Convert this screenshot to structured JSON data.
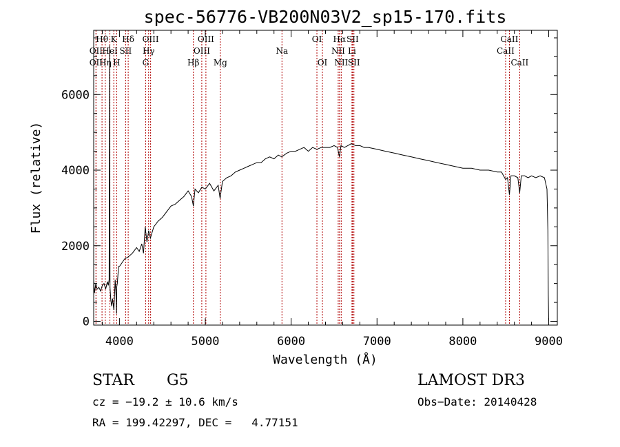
{
  "chart_data": {
    "type": "line",
    "title": "spec-56776-VB200N03V2_sp15-170.fits",
    "xlabel": "Wavelength (Å)",
    "ylabel": "Flux (relative)",
    "xlim": [
      3700,
      9100
    ],
    "ylim": [
      -100,
      7700
    ],
    "x_ticks": [
      4000,
      5000,
      6000,
      7000,
      8000,
      9000
    ],
    "y_ticks": [
      0,
      2000,
      4000,
      6000
    ],
    "x_minor_step": 200,
    "y_minor_step": 500,
    "grid": false,
    "series": [
      {
        "x": [
          3700,
          3710,
          3725,
          3740,
          3760,
          3780,
          3800,
          3820,
          3840,
          3860,
          3870,
          3880,
          3885,
          3890,
          3900,
          3910,
          3920,
          3935,
          3950,
          3960,
          3966,
          3968,
          3975,
          3990,
          4000,
          4030,
          4060,
          4100,
          4150,
          4200,
          4230,
          4260,
          4280,
          4300,
          4320,
          4340,
          4360,
          4400,
          4450,
          4500,
          4550,
          4600,
          4650,
          4700,
          4750,
          4800,
          4840,
          4861,
          4880,
          4920,
          4960,
          5000,
          5050,
          5100,
          5150,
          5172,
          5200,
          5250,
          5300,
          5350,
          5400,
          5450,
          5500,
          5550,
          5600,
          5650,
          5700,
          5750,
          5800,
          5850,
          5890,
          5950,
          6000,
          6050,
          6100,
          6150,
          6200,
          6250,
          6300,
          6350,
          6400,
          6450,
          6500,
          6540,
          6563,
          6580,
          6620,
          6660,
          6700,
          6750,
          6800,
          6850,
          6900,
          7000,
          7100,
          7200,
          7300,
          7400,
          7500,
          7600,
          7700,
          7800,
          7900,
          8000,
          8100,
          8200,
          8300,
          8400,
          8450,
          8498,
          8520,
          8542,
          8560,
          8600,
          8640,
          8662,
          8680,
          8720,
          8760,
          8800,
          8850,
          8900,
          8950,
          8980,
          8990,
          8995,
          9000
        ],
        "values": [
          1100,
          750,
          1000,
          850,
          900,
          800,
          950,
          1000,
          850,
          1050,
          950,
          1100,
          7300,
          900,
          550,
          400,
          600,
          300,
          1100,
          700,
          200,
          900,
          1000,
          1450,
          1450,
          1550,
          1650,
          1700,
          1800,
          1950,
          1850,
          2050,
          1800,
          2500,
          2100,
          2400,
          2200,
          2500,
          2650,
          2750,
          2900,
          3050,
          3100,
          3200,
          3300,
          3450,
          3300,
          3050,
          3500,
          3400,
          3550,
          3500,
          3650,
          3450,
          3600,
          3250,
          3700,
          3800,
          3850,
          3950,
          4000,
          4050,
          4100,
          4150,
          4200,
          4200,
          4300,
          4350,
          4300,
          4400,
          4350,
          4450,
          4500,
          4500,
          4550,
          4600,
          4500,
          4600,
          4550,
          4600,
          4600,
          4600,
          4650,
          4600,
          4350,
          4650,
          4600,
          4650,
          4700,
          4650,
          4650,
          4600,
          4600,
          4550,
          4500,
          4450,
          4400,
          4350,
          4300,
          4250,
          4200,
          4150,
          4100,
          4050,
          4050,
          4000,
          4000,
          3950,
          3950,
          3750,
          3800,
          3350,
          3850,
          3850,
          3800,
          3400,
          3850,
          3850,
          3800,
          3850,
          3800,
          3850,
          3800,
          3500,
          2400,
          700,
          0
        ]
      }
    ],
    "line_markers": [
      {
        "label": "Hθ",
        "x": 3797,
        "row": 0
      },
      {
        "label": "OII",
        "x": 3727,
        "row": 1
      },
      {
        "label": "OII",
        "x": 3727,
        "row": 2
      },
      {
        "label": "Hη",
        "x": 3835,
        "row": 2
      },
      {
        "label": "HeI",
        "x": 3889,
        "row": 1
      },
      {
        "label": "K",
        "x": 3934,
        "row": 0
      },
      {
        "label": "H",
        "x": 3968,
        "row": 2
      },
      {
        "label": "Hδ",
        "x": 4102,
        "row": 0
      },
      {
        "label": "SII",
        "x": 4072,
        "row": 1
      },
      {
        "label": "OIII",
        "x": 4363,
        "row": 0
      },
      {
        "label": "Hγ",
        "x": 4340,
        "row": 1
      },
      {
        "label": "G",
        "x": 4305,
        "row": 2
      },
      {
        "label": "Hβ",
        "x": 4861,
        "row": 2
      },
      {
        "label": "OIII",
        "x": 5007,
        "row": 0
      },
      {
        "label": "OIII",
        "x": 4959,
        "row": 1
      },
      {
        "label": "Mg",
        "x": 5175,
        "row": 2
      },
      {
        "label": "Na",
        "x": 5893,
        "row": 1
      },
      {
        "label": "OI",
        "x": 6300,
        "row": 0
      },
      {
        "label": "OI",
        "x": 6364,
        "row": 2
      },
      {
        "label": "Hα",
        "x": 6563,
        "row": 0
      },
      {
        "label": "SII",
        "x": 6716,
        "row": 0
      },
      {
        "label": "NII",
        "x": 6548,
        "row": 1
      },
      {
        "label": "Li",
        "x": 6708,
        "row": 1
      },
      {
        "label": "NII",
        "x": 6583,
        "row": 2
      },
      {
        "label": "SII",
        "x": 6731,
        "row": 2
      },
      {
        "label": "CaII",
        "x": 8542,
        "row": 0
      },
      {
        "label": "CaII",
        "x": 8498,
        "row": 1
      },
      {
        "label": "CaII",
        "x": 8662,
        "row": 2
      }
    ]
  },
  "info": {
    "object_class": "STAR",
    "subclass": "G5",
    "survey": "LAMOST DR3",
    "cz": "cz = −19.2 ± 10.6 km/s",
    "obs_date": "Obs−Date: 20140428",
    "coords": "RA = 199.42297, DEC =   4.77151"
  }
}
